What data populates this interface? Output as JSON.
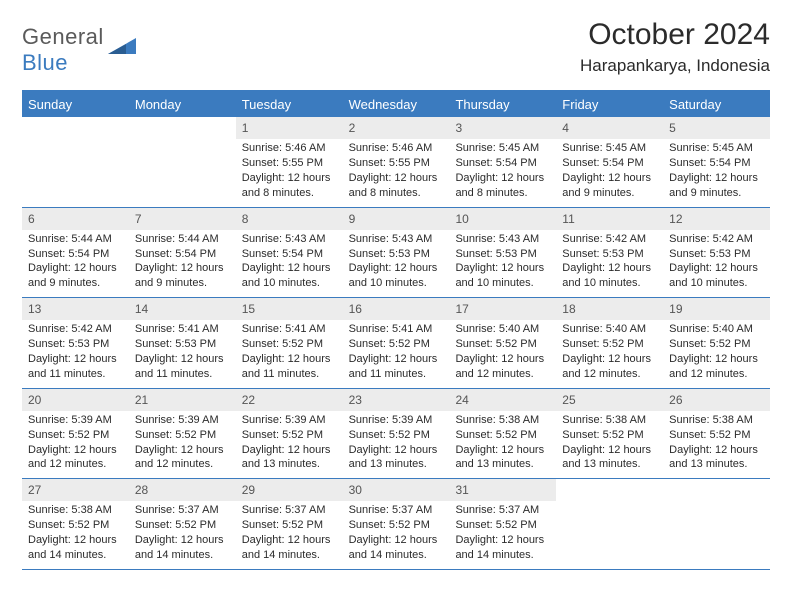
{
  "brand": {
    "part1": "General",
    "part2": "Blue"
  },
  "title": "October 2024",
  "location": "Harapankarya, Indonesia",
  "colors": {
    "accent": "#3b7bbf",
    "daynum_bg": "#ececec",
    "text": "#2b2b2b",
    "background": "#ffffff"
  },
  "weekdays": [
    "Sunday",
    "Monday",
    "Tuesday",
    "Wednesday",
    "Thursday",
    "Friday",
    "Saturday"
  ],
  "weeks": [
    [
      {
        "n": "",
        "sr": "",
        "ss": "",
        "dl": ""
      },
      {
        "n": "",
        "sr": "",
        "ss": "",
        "dl": ""
      },
      {
        "n": "1",
        "sr": "5:46 AM",
        "ss": "5:55 PM",
        "dl": "12 hours and 8 minutes."
      },
      {
        "n": "2",
        "sr": "5:46 AM",
        "ss": "5:55 PM",
        "dl": "12 hours and 8 minutes."
      },
      {
        "n": "3",
        "sr": "5:45 AM",
        "ss": "5:54 PM",
        "dl": "12 hours and 8 minutes."
      },
      {
        "n": "4",
        "sr": "5:45 AM",
        "ss": "5:54 PM",
        "dl": "12 hours and 9 minutes."
      },
      {
        "n": "5",
        "sr": "5:45 AM",
        "ss": "5:54 PM",
        "dl": "12 hours and 9 minutes."
      }
    ],
    [
      {
        "n": "6",
        "sr": "5:44 AM",
        "ss": "5:54 PM",
        "dl": "12 hours and 9 minutes."
      },
      {
        "n": "7",
        "sr": "5:44 AM",
        "ss": "5:54 PM",
        "dl": "12 hours and 9 minutes."
      },
      {
        "n": "8",
        "sr": "5:43 AM",
        "ss": "5:54 PM",
        "dl": "12 hours and 10 minutes."
      },
      {
        "n": "9",
        "sr": "5:43 AM",
        "ss": "5:53 PM",
        "dl": "12 hours and 10 minutes."
      },
      {
        "n": "10",
        "sr": "5:43 AM",
        "ss": "5:53 PM",
        "dl": "12 hours and 10 minutes."
      },
      {
        "n": "11",
        "sr": "5:42 AM",
        "ss": "5:53 PM",
        "dl": "12 hours and 10 minutes."
      },
      {
        "n": "12",
        "sr": "5:42 AM",
        "ss": "5:53 PM",
        "dl": "12 hours and 10 minutes."
      }
    ],
    [
      {
        "n": "13",
        "sr": "5:42 AM",
        "ss": "5:53 PM",
        "dl": "12 hours and 11 minutes."
      },
      {
        "n": "14",
        "sr": "5:41 AM",
        "ss": "5:53 PM",
        "dl": "12 hours and 11 minutes."
      },
      {
        "n": "15",
        "sr": "5:41 AM",
        "ss": "5:52 PM",
        "dl": "12 hours and 11 minutes."
      },
      {
        "n": "16",
        "sr": "5:41 AM",
        "ss": "5:52 PM",
        "dl": "12 hours and 11 minutes."
      },
      {
        "n": "17",
        "sr": "5:40 AM",
        "ss": "5:52 PM",
        "dl": "12 hours and 12 minutes."
      },
      {
        "n": "18",
        "sr": "5:40 AM",
        "ss": "5:52 PM",
        "dl": "12 hours and 12 minutes."
      },
      {
        "n": "19",
        "sr": "5:40 AM",
        "ss": "5:52 PM",
        "dl": "12 hours and 12 minutes."
      }
    ],
    [
      {
        "n": "20",
        "sr": "5:39 AM",
        "ss": "5:52 PM",
        "dl": "12 hours and 12 minutes."
      },
      {
        "n": "21",
        "sr": "5:39 AM",
        "ss": "5:52 PM",
        "dl": "12 hours and 12 minutes."
      },
      {
        "n": "22",
        "sr": "5:39 AM",
        "ss": "5:52 PM",
        "dl": "12 hours and 13 minutes."
      },
      {
        "n": "23",
        "sr": "5:39 AM",
        "ss": "5:52 PM",
        "dl": "12 hours and 13 minutes."
      },
      {
        "n": "24",
        "sr": "5:38 AM",
        "ss": "5:52 PM",
        "dl": "12 hours and 13 minutes."
      },
      {
        "n": "25",
        "sr": "5:38 AM",
        "ss": "5:52 PM",
        "dl": "12 hours and 13 minutes."
      },
      {
        "n": "26",
        "sr": "5:38 AM",
        "ss": "5:52 PM",
        "dl": "12 hours and 13 minutes."
      }
    ],
    [
      {
        "n": "27",
        "sr": "5:38 AM",
        "ss": "5:52 PM",
        "dl": "12 hours and 14 minutes."
      },
      {
        "n": "28",
        "sr": "5:37 AM",
        "ss": "5:52 PM",
        "dl": "12 hours and 14 minutes."
      },
      {
        "n": "29",
        "sr": "5:37 AM",
        "ss": "5:52 PM",
        "dl": "12 hours and 14 minutes."
      },
      {
        "n": "30",
        "sr": "5:37 AM",
        "ss": "5:52 PM",
        "dl": "12 hours and 14 minutes."
      },
      {
        "n": "31",
        "sr": "5:37 AM",
        "ss": "5:52 PM",
        "dl": "12 hours and 14 minutes."
      },
      {
        "n": "",
        "sr": "",
        "ss": "",
        "dl": ""
      },
      {
        "n": "",
        "sr": "",
        "ss": "",
        "dl": ""
      }
    ]
  ],
  "labels": {
    "sunrise": "Sunrise:",
    "sunset": "Sunset:",
    "daylight": "Daylight:"
  }
}
